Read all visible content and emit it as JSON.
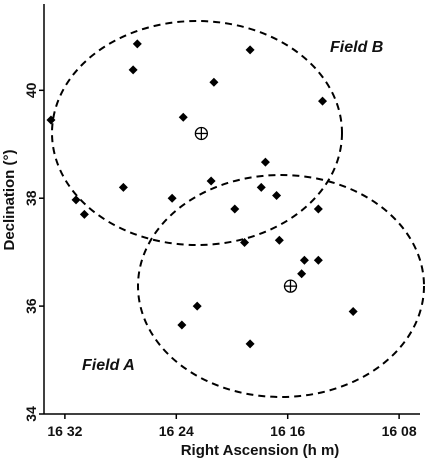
{
  "chart_data": {
    "type": "scatter",
    "xlabel": "Right Ascension (h m)",
    "ylabel": "Declination (°)",
    "x_unit": "minutes of right ascension within hour 16",
    "xlim": [
      33.5,
      6.5
    ],
    "ylim": [
      34,
      41.6
    ],
    "x_ticks": [
      {
        "value": 32,
        "label": "16 32"
      },
      {
        "value": 24,
        "label": "16 24"
      },
      {
        "value": 16,
        "label": "16 16"
      },
      {
        "value": 8,
        "label": "16 08"
      }
    ],
    "y_ticks": [
      {
        "value": 34,
        "label": "34"
      },
      {
        "value": 36,
        "label": "36"
      },
      {
        "value": 38,
        "label": "38"
      },
      {
        "value": 40,
        "label": "40"
      }
    ],
    "series": [
      {
        "marker": "diamond",
        "color": "#000000",
        "points": [
          {
            "x": 33.0,
            "y": 39.45
          },
          {
            "x": 31.2,
            "y": 37.97
          },
          {
            "x": 30.6,
            "y": 37.7
          },
          {
            "x": 27.8,
            "y": 38.2
          },
          {
            "x": 27.1,
            "y": 40.38
          },
          {
            "x": 26.8,
            "y": 40.86
          },
          {
            "x": 24.3,
            "y": 38.0
          },
          {
            "x": 23.6,
            "y": 35.65
          },
          {
            "x": 23.5,
            "y": 39.5
          },
          {
            "x": 22.5,
            "y": 36.0
          },
          {
            "x": 21.5,
            "y": 38.32
          },
          {
            "x": 21.3,
            "y": 40.15
          },
          {
            "x": 19.8,
            "y": 37.8
          },
          {
            "x": 19.1,
            "y": 37.18
          },
          {
            "x": 18.7,
            "y": 40.75
          },
          {
            "x": 18.7,
            "y": 35.3
          },
          {
            "x": 17.9,
            "y": 38.2
          },
          {
            "x": 17.6,
            "y": 38.67
          },
          {
            "x": 16.8,
            "y": 38.05
          },
          {
            "x": 16.6,
            "y": 37.22
          },
          {
            "x": 15.0,
            "y": 36.6
          },
          {
            "x": 14.8,
            "y": 36.85
          },
          {
            "x": 13.8,
            "y": 37.8
          },
          {
            "x": 13.8,
            "y": 36.85
          },
          {
            "x": 13.5,
            "y": 39.8
          },
          {
            "x": 11.3,
            "y": 35.9
          }
        ]
      }
    ],
    "field_centers": [
      {
        "x": 22.2,
        "y": 39.2,
        "marker": "circled-plus"
      },
      {
        "x": 15.8,
        "y": 36.37,
        "marker": "circled-plus"
      }
    ],
    "fields": [
      {
        "label": "Field B",
        "center": {
          "x": 22.2,
          "y": 39.2
        }
      },
      {
        "label": "Field A",
        "center": {
          "x": 15.8,
          "y": 36.37
        }
      }
    ],
    "grid": false,
    "legend": "none"
  }
}
